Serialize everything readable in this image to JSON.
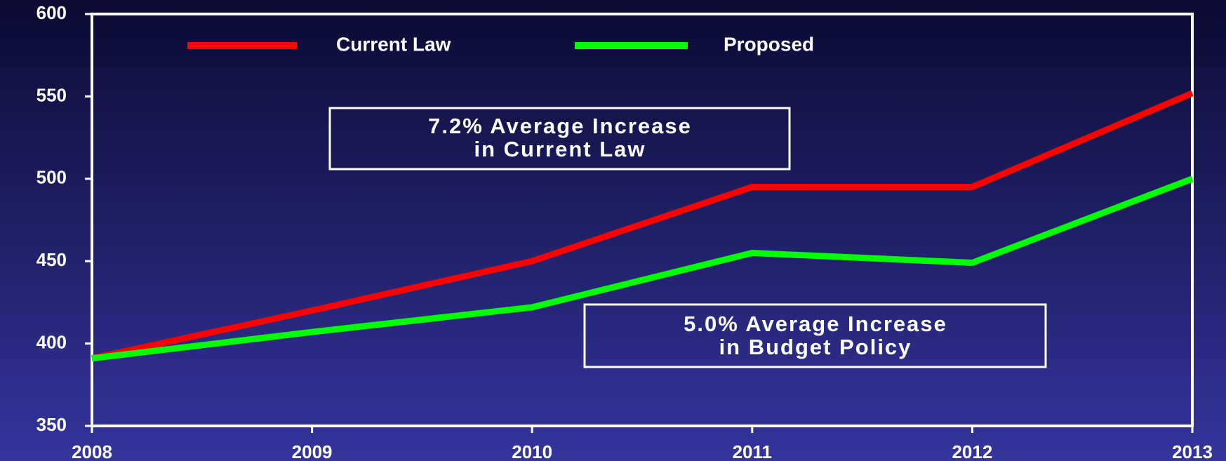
{
  "chart_data": {
    "type": "line",
    "categories": [
      "2008",
      "2009",
      "2010",
      "2011",
      "2012",
      "2013"
    ],
    "series": [
      {
        "name": "Current Law",
        "color": "#ff0000",
        "values": [
          391,
          420,
          450,
          495,
          495,
          552
        ]
      },
      {
        "name": "Proposed",
        "color": "#00ff00",
        "values": [
          391,
          407,
          422,
          455,
          449,
          500
        ]
      }
    ],
    "ylim": [
      350,
      600
    ],
    "yticks": [
      350,
      400,
      450,
      500,
      550,
      600
    ],
    "legend": "top",
    "annotations": [
      {
        "lines": [
          "7.2% Average Increase",
          "in Current Law"
        ]
      },
      {
        "lines": [
          "5.0% Average Increase",
          "in Budget Policy"
        ]
      }
    ]
  }
}
